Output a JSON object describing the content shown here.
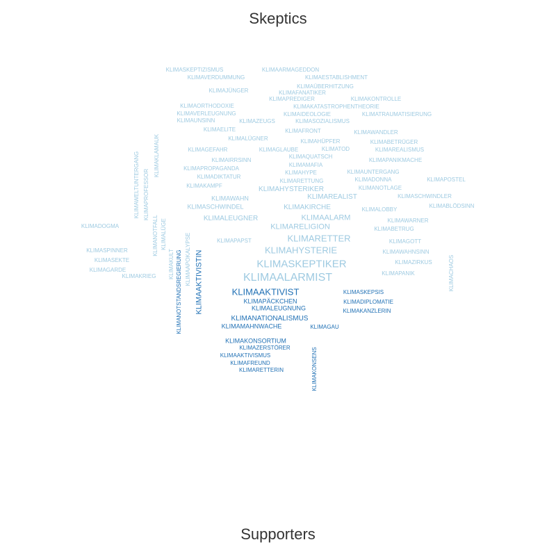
{
  "titles": {
    "top": "Skeptics",
    "bottom": "Supporters"
  },
  "colors": {
    "skeptic": "#9ecae1",
    "supporter": "#2171b5",
    "title": "#333333"
  },
  "skeptic_words": [
    "KLIMASKEPTIZISMUS",
    "KLIMAARMAGEDDON",
    "KLIMAVERDUMMUNG",
    "KLIMAESTABLISHMENT",
    "KLIMAÜBERHITZUNG",
    "KLIMAJÜNGER",
    "KLIMAFANATIKER",
    "KLIMAPREDIGER",
    "KLIMAKONTROLLE",
    "KLIMAORTHODOXIE",
    "KLIMAKATASTROPHENTHEORIE",
    "KLIMAVERLEUGNUNG",
    "KLIMAIDEOLOGIE",
    "KLIMATRAUMATISIERUNG",
    "KLIMAUNSINN",
    "KLIMAZEUGS",
    "KLIMASOZIALISMUS",
    "KLIMAELITE",
    "KLIMAFRONT",
    "KLIMAWANDLER",
    "KLIMALÜGNER",
    "KLIMAHÜPFER",
    "KLIMABETRÜGER",
    "KLIMAGEFAHR",
    "KLIMAGLAUBE",
    "KLIMATOD",
    "KLIMAREALISMUS",
    "KLIMAQUATSCH",
    "KLIMAIRRSINN",
    "KLIMAPANIKMACHE",
    "KLIMAMAFIA",
    "KLIMAPROPAGANDA",
    "KLIMAHYPE",
    "KLIMAUNTERGANG",
    "KLIMADIKTATUR",
    "KLIMADONNA",
    "KLIMAPOSTEL",
    "KLIMARETTUNG",
    "KLIMAKAMPF",
    "KLIMANOTLAGE",
    "KLIMAHYSTERIKER",
    "KLIMASCHWINDLER",
    "KLIMAWAHN",
    "KLIMAREALIST",
    "KLIMABLÖDSINN",
    "KLIMASCHWINDEL",
    "KLIMAKIRCHE",
    "KLIMALOBBY",
    "KLIMAWARNER",
    "KLIMALEUGNER",
    "KLIMAALARM",
    "KLIMADOGMA",
    "KLIMARELIGION",
    "KLIMABETRUG",
    "KLIMARETTER",
    "KLIMAPAPST",
    "KLIMAGOTT",
    "KLIMAHYSTERIE",
    "KLIMASPINNER",
    "KLIMAWAHNSINN",
    "KLIMASEKTE",
    "KLIMASKEPTIKER",
    "KLIMAZIRKUS",
    "KLIMAGARDE",
    "KLIMAPANIK",
    "KLIMAKRIEG",
    "KLIMAALARMIST",
    "KLIMAWELTUNTERGANG",
    "KLIMAPROFESSOR",
    "KLIMAKLAMAUK",
    "KLIMANOTFALL",
    "KLIMALÜGE",
    "KLIMAKULT",
    "KLIMAAPOKALYPSE",
    "KLIMACHAOS"
  ],
  "supporter_words": [
    "KLIMANOTSTANDSREGIERUNG",
    "KLIMAAKTIVISTIN",
    "KLIMAAKTIVIST",
    "KLIMASKEPSIS",
    "KLIMAPÄCKCHEN",
    "KLIMADIPLOMATIE",
    "KLIMALEUGNUNG",
    "KLIMAKANZLERIN",
    "KLIMANATIONALISMUS",
    "KLIMAMAHNWACHE",
    "KLIMAGAU",
    "KLIMAKONSORTIUM",
    "KLIMAZERSTÖRER",
    "KLIMAAKTIVISMUS",
    "KLIMAKONSENS",
    "KLIMAFREUND",
    "KLIMARETTERIN"
  ]
}
